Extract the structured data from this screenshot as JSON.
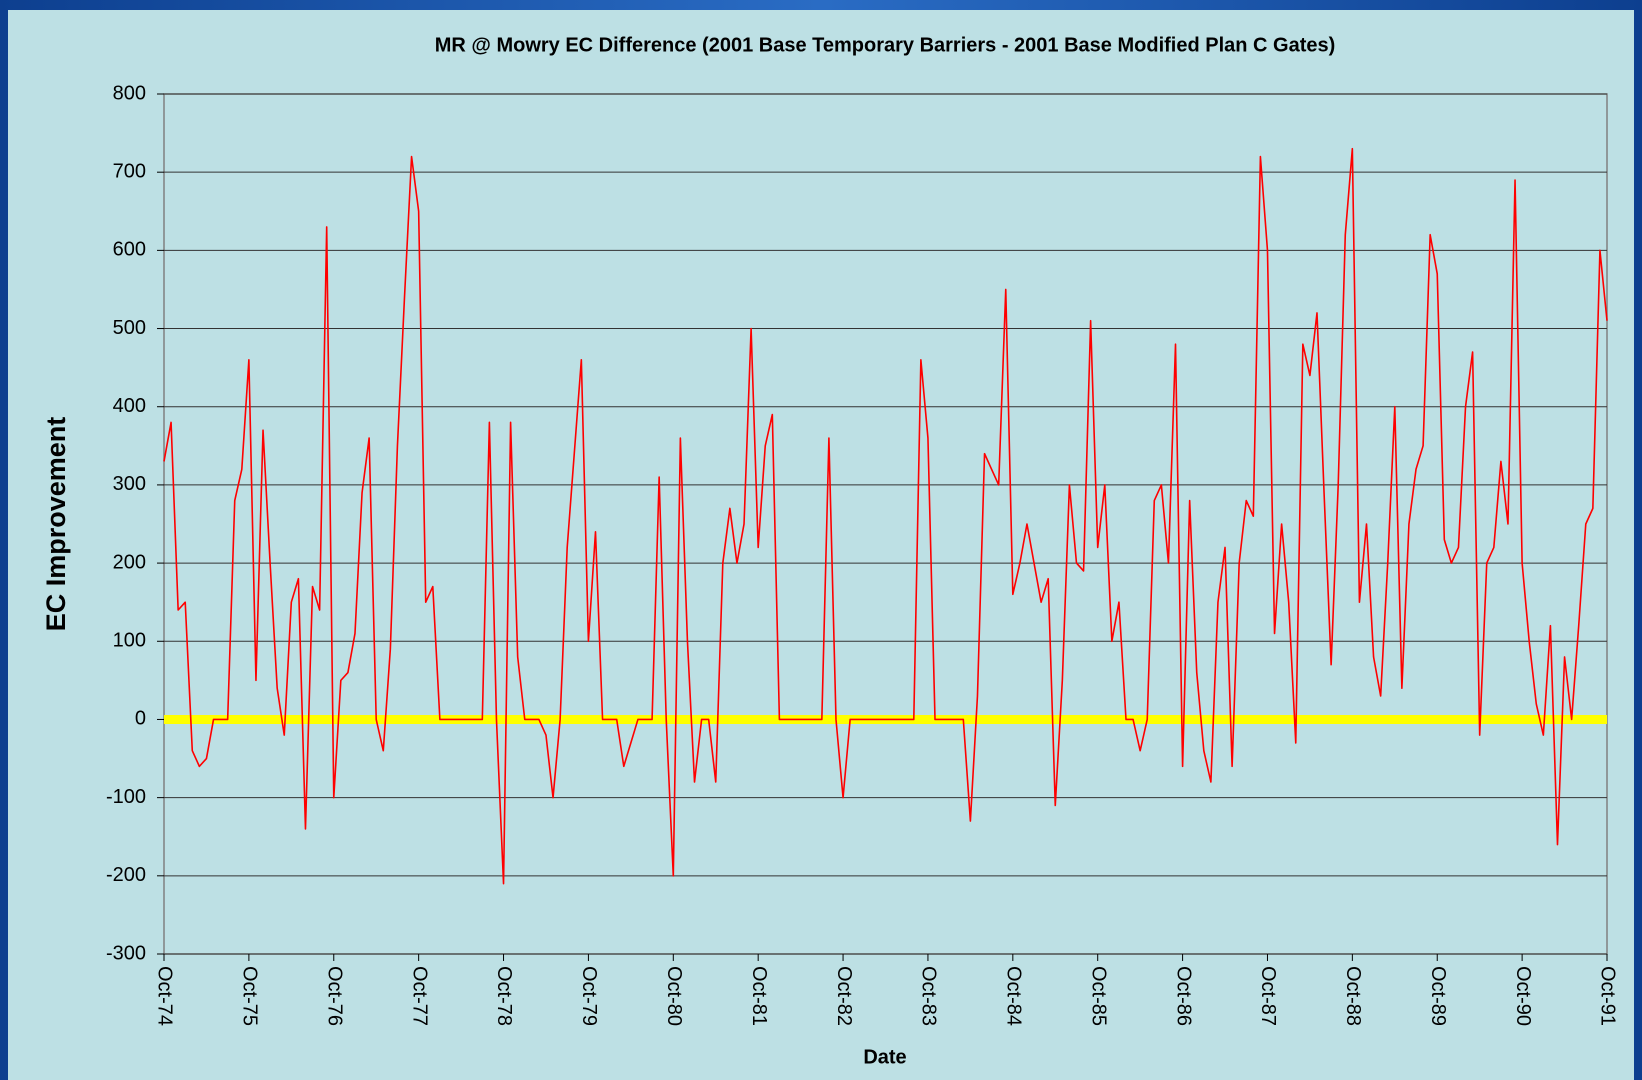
{
  "chart_data": {
    "type": "line",
    "title": "MR @ Mowry EC Difference (2001 Base Temporary Barriers - 2001 Base Modified Plan C Gates)",
    "x_label": "Date",
    "y_label": "EC Improvement",
    "categories": [
      "Oct-74",
      null,
      null,
      null,
      null,
      null,
      null,
      null,
      null,
      null,
      null,
      null,
      "Oct-75",
      null,
      null,
      null,
      null,
      null,
      null,
      null,
      null,
      null,
      null,
      null,
      "Oct-76",
      null,
      null,
      null,
      null,
      null,
      null,
      null,
      null,
      null,
      null,
      null,
      "Oct-77",
      null,
      null,
      null,
      null,
      null,
      null,
      null,
      null,
      null,
      null,
      null,
      "Oct-78",
      null,
      null,
      null,
      null,
      null,
      null,
      null,
      null,
      null,
      null,
      null,
      "Oct-79",
      null,
      null,
      null,
      null,
      null,
      null,
      null,
      null,
      null,
      null,
      null,
      "Oct-80",
      null,
      null,
      null,
      null,
      null,
      null,
      null,
      null,
      null,
      null,
      null,
      "Oct-81",
      null,
      null,
      null,
      null,
      null,
      null,
      null,
      null,
      null,
      null,
      null,
      "Oct-82",
      null,
      null,
      null,
      null,
      null,
      null,
      null,
      null,
      null,
      null,
      null,
      "Oct-83",
      null,
      null,
      null,
      null,
      null,
      null,
      null,
      null,
      null,
      null,
      null,
      "Oct-84",
      null,
      null,
      null,
      null,
      null,
      null,
      null,
      null,
      null,
      null,
      null,
      "Oct-85",
      null,
      null,
      null,
      null,
      null,
      null,
      null,
      null,
      null,
      null,
      null,
      "Oct-86",
      null,
      null,
      null,
      null,
      null,
      null,
      null,
      null,
      null,
      null,
      null,
      "Oct-87",
      null,
      null,
      null,
      null,
      null,
      null,
      null,
      null,
      null,
      null,
      null,
      "Oct-88",
      null,
      null,
      null,
      null,
      null,
      null,
      null,
      null,
      null,
      null,
      null,
      "Oct-89",
      null,
      null,
      null,
      null,
      null,
      null,
      null,
      null,
      null,
      null,
      null,
      "Oct-90",
      null,
      null,
      null,
      null,
      null,
      null,
      null,
      null,
      null,
      null,
      null,
      "Oct-91"
    ],
    "series": [
      {
        "color": "#ff0000",
        "values": [
          330,
          380,
          140,
          150,
          -40,
          -60,
          -50,
          0,
          0,
          0,
          280,
          320,
          460,
          50,
          370,
          200,
          40,
          -20,
          150,
          180,
          -140,
          170,
          140,
          630,
          -100,
          50,
          60,
          110,
          290,
          360,
          0,
          -40,
          90,
          350,
          540,
          720,
          650,
          150,
          170,
          0,
          0,
          0,
          0,
          0,
          0,
          0,
          380,
          0,
          -210,
          380,
          80,
          0,
          0,
          0,
          -20,
          -100,
          0,
          220,
          340,
          460,
          100,
          240,
          0,
          0,
          0,
          -60,
          -30,
          0,
          0,
          0,
          310,
          0,
          -200,
          360,
          100,
          -80,
          0,
          0,
          -80,
          200,
          270,
          200,
          250,
          500,
          220,
          350,
          390,
          0,
          0,
          0,
          0,
          0,
          0,
          0,
          360,
          0,
          -100,
          0,
          0,
          0,
          0,
          0,
          0,
          0,
          0,
          0,
          0,
          460,
          360,
          0,
          0,
          0,
          0,
          0,
          -130,
          30,
          340,
          320,
          300,
          550,
          160,
          200,
          250,
          200,
          150,
          180,
          -110,
          50,
          300,
          200,
          190,
          510,
          220,
          300,
          100,
          150,
          0,
          0,
          -40,
          0,
          280,
          300,
          200,
          480,
          -60,
          280,
          60,
          -40,
          -80,
          150,
          220,
          -60,
          200,
          280,
          260,
          720,
          600,
          110,
          250,
          150,
          -30,
          480,
          440,
          520,
          290,
          70,
          300,
          620,
          730,
          150,
          250,
          80,
          30,
          200,
          400,
          40,
          250,
          320,
          350,
          620,
          570,
          230,
          200,
          220,
          400,
          470,
          -20,
          200,
          220,
          330,
          250,
          690,
          200,
          100,
          20,
          -20,
          120,
          -160,
          80,
          0,
          120,
          250,
          270,
          600,
          510
        ]
      }
    ],
    "reference_line": {
      "value": 0,
      "color": "#ffff00"
    },
    "ylim": [
      -300,
      800
    ],
    "yticks": [
      -300,
      -200,
      -100,
      0,
      100,
      200,
      300,
      400,
      500,
      600,
      700,
      800
    ],
    "grid": true
  }
}
